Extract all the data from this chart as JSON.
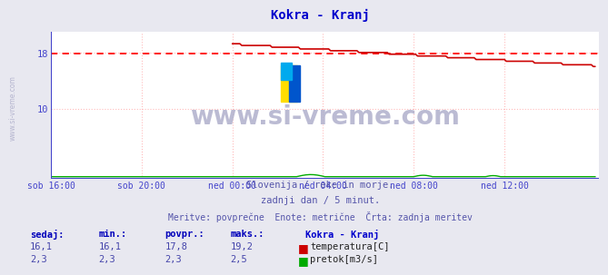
{
  "title": "Kokra - Kranj",
  "title_color": "#0000cc",
  "bg_color": "#e8e8f0",
  "plot_bg_color": "#ffffff",
  "grid_color": "#ffbbbb",
  "axis_color": "#4444cc",
  "x_tick_labels": [
    "sob 16:00",
    "sob 20:00",
    "ned 00:00",
    "ned 04:00",
    "ned 08:00",
    "ned 12:00"
  ],
  "x_tick_positions": [
    0,
    48,
    96,
    144,
    192,
    240
  ],
  "y_ticks": [
    10,
    18
  ],
  "y_lim": [
    0,
    21
  ],
  "x_lim": [
    0,
    290
  ],
  "temp_avg": 17.8,
  "temp_min": 16.1,
  "temp_max": 19.2,
  "temp_sedaj": 16.1,
  "flow_avg": 2.3,
  "flow_min": 2.3,
  "flow_max": 2.5,
  "flow_sedaj": 2.3,
  "watermark": "www.si-vreme.com",
  "watermark_color": "#b0b0cc",
  "subtitle1": "Slovenija / reke in morje.",
  "subtitle2": "zadnji dan / 5 minut.",
  "subtitle3": "Meritve: povprečne  Enote: metrične  Črta: zadnja meritev",
  "subtitle_color": "#5555aa",
  "legend_title": "Kokra - Kranj",
  "legend_color": "#0000cc",
  "label_color": "#0000aa",
  "temp_line_color": "#cc0000",
  "flow_line_color": "#00aa00",
  "avg_line_color": "#ff0000",
  "n_points": 289,
  "temp_start_idx": 96,
  "temp_start_val": 19.2,
  "temp_end_val": 16.1,
  "flow_base": 2.3,
  "flow_scale": 0.12
}
